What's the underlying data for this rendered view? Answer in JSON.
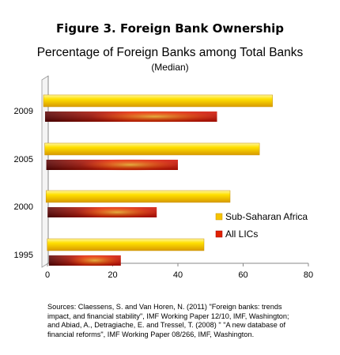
{
  "header": {
    "figure_title": "Figure 3. Foreign Bank Ownership"
  },
  "chart_data": {
    "type": "bar",
    "orientation": "horizontal",
    "title": "Percentage of Foreign Banks among Total Banks",
    "subtitle": "(Median)",
    "categories": [
      "2009",
      "2005",
      "2000",
      "1995"
    ],
    "series": [
      {
        "name": "Sub-Saharan Africa",
        "values": [
          69,
          65,
          56,
          48
        ],
        "color": "#f5c400"
      },
      {
        "name": "All LICs",
        "values": [
          52,
          40,
          33.5,
          22.5
        ],
        "color": "#e02200"
      }
    ],
    "xlim": [
      0,
      80
    ],
    "xticks": [
      "0",
      "20",
      "40",
      "60",
      "80"
    ],
    "xlabel": "",
    "ylabel": "",
    "grid": false,
    "legend_position": "right",
    "style": "3d"
  },
  "footer": {
    "sources_lines": [
      "Sources: Claessens, S. and Van Horen, N. (2011) \"Foreign banks: trends",
      "impact, and financial stability\", IMF  Working Paper 12/10, IMF,  Washington;",
      "and Abiad, A., Detragiache, E. and Tressel, T. (2008) \" \"A new database of",
      "financial reforms\", IMF Working Paper 08/266, IMF,  Washington."
    ]
  }
}
